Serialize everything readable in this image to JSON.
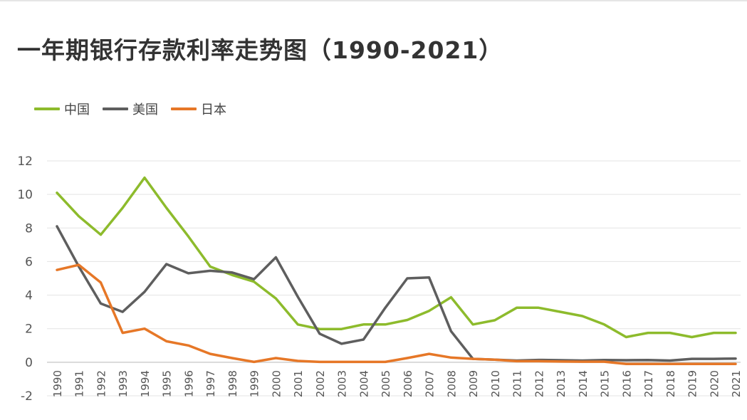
{
  "title": "一年期银行存款利率走势图（1990-2021）",
  "chart_data": {
    "type": "line",
    "title": "一年期银行存款利率走势图（1990-2021）",
    "xlabel": "",
    "ylabel": "",
    "x": [
      "1990",
      "1991",
      "1992",
      "1993",
      "1994",
      "1995",
      "1996",
      "1997",
      "1998",
      "1999",
      "2000",
      "2001",
      "2002",
      "2003",
      "2004",
      "2005",
      "2006",
      "2007",
      "2008",
      "2009",
      "2010",
      "2011",
      "2012",
      "2013",
      "2014",
      "2015",
      "2016",
      "2017",
      "2018",
      "2019",
      "2020",
      "2021"
    ],
    "ylim": [
      -2,
      12
    ],
    "yticks": [
      -2,
      0,
      2,
      4,
      6,
      8,
      10,
      12
    ],
    "grid": true,
    "legend_position": "top-left",
    "series": [
      {
        "name": "中国",
        "color": "#8dbb2c",
        "values": [
          10.1,
          8.7,
          7.6,
          9.2,
          11.0,
          9.2,
          7.5,
          5.7,
          5.2,
          4.8,
          3.8,
          2.25,
          1.98,
          1.98,
          2.25,
          2.25,
          2.52,
          3.06,
          3.87,
          2.25,
          2.5,
          3.25,
          3.25,
          3.0,
          2.75,
          2.25,
          1.5,
          1.75,
          1.75,
          1.5,
          1.75,
          1.75
        ]
      },
      {
        "name": "美国",
        "color": "#5e5e5e",
        "values": [
          8.1,
          5.7,
          3.5,
          3.0,
          4.2,
          5.85,
          5.3,
          5.45,
          5.35,
          4.95,
          6.25,
          3.9,
          1.7,
          1.1,
          1.35,
          3.25,
          5.0,
          5.05,
          1.85,
          0.2,
          0.15,
          0.1,
          0.14,
          0.12,
          0.1,
          0.13,
          0.12,
          0.13,
          0.1,
          0.2,
          0.2,
          0.22
        ]
      },
      {
        "name": "日本",
        "color": "#e67727",
        "values": [
          5.5,
          5.8,
          4.75,
          1.75,
          2.0,
          1.25,
          1.0,
          0.5,
          0.25,
          0.02,
          0.25,
          0.08,
          0.02,
          0.02,
          0.02,
          0.02,
          0.25,
          0.5,
          0.28,
          0.2,
          0.15,
          0.06,
          0.06,
          0.04,
          0.03,
          0.03,
          -0.1,
          -0.1,
          -0.1,
          -0.1,
          -0.1,
          -0.1
        ]
      }
    ]
  }
}
